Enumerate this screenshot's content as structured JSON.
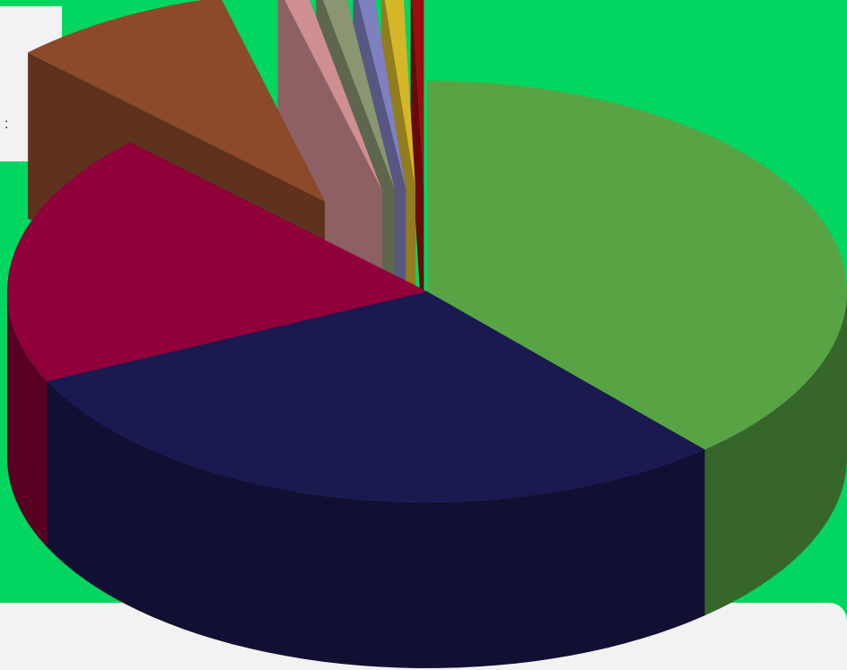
{
  "panel": {
    "text": ":"
  },
  "chart_data": {
    "type": "pie",
    "style": "3d",
    "title": "",
    "series": [
      {
        "categories": [
          "",
          "",
          "",
          "",
          "",
          "",
          "",
          "",
          ""
        ],
        "values": [
          38.5,
          29.5,
          19.5,
          8.5,
          1.0,
          1.0,
          0.7,
          0.8,
          0.5
        ],
        "colors": [
          "#58a445",
          "#1b1a50",
          "#91003b",
          "#8c4a2a",
          "#cf8f92",
          "#8a9672",
          "#7e80bf",
          "#d6b629",
          "#9a0d0f"
        ],
        "exploded_slices": [
          3,
          4,
          5,
          6,
          7,
          8
        ]
      }
    ]
  }
}
